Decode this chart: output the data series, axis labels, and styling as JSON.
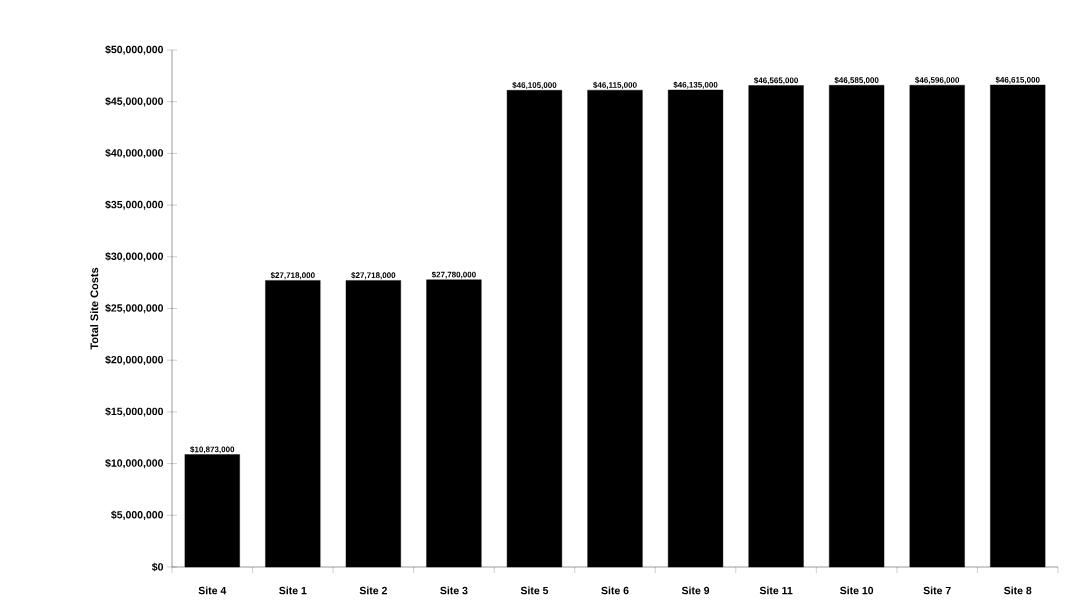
{
  "chart_data": {
    "type": "bar",
    "ylabel": "Total Site Costs",
    "categories": [
      "Site 4",
      "Site 1",
      "Site 2",
      "Site 3",
      "Site 5",
      "Site 6",
      "Site 9",
      "Site 11",
      "Site 10",
      "Site 7",
      "Site 8"
    ],
    "values": [
      10873000,
      27718000,
      27718000,
      27780000,
      46105000,
      46115000,
      46135000,
      46565000,
      46585000,
      46596000,
      46615000
    ],
    "value_labels": [
      "$10,873,000",
      "$27,718,000",
      "$27,718,000",
      "$27,780,000",
      "$46,105,000",
      "$46,115,000",
      "$46,135,000",
      "$46,565,000",
      "$46,585,000",
      "$46,596,000",
      "$46,615,000"
    ],
    "color": "#000000",
    "ylim": [
      0,
      50000000
    ],
    "yticks": [
      {
        "value": 0,
        "label": "$0"
      },
      {
        "value": 5000000,
        "label": "$5,000,000"
      },
      {
        "value": 10000000,
        "label": "$10,000,000"
      },
      {
        "value": 15000000,
        "label": "$15,000,000"
      },
      {
        "value": 20000000,
        "label": "$20,000,000"
      },
      {
        "value": 25000000,
        "label": "$25,000,000"
      },
      {
        "value": 30000000,
        "label": "$30,000,000"
      },
      {
        "value": 35000000,
        "label": "$35,000,000"
      },
      {
        "value": 40000000,
        "label": "$40,000,000"
      },
      {
        "value": 45000000,
        "label": "$45,000,000"
      },
      {
        "value": 50000000,
        "label": "$50,000,000"
      }
    ],
    "grid": false
  }
}
